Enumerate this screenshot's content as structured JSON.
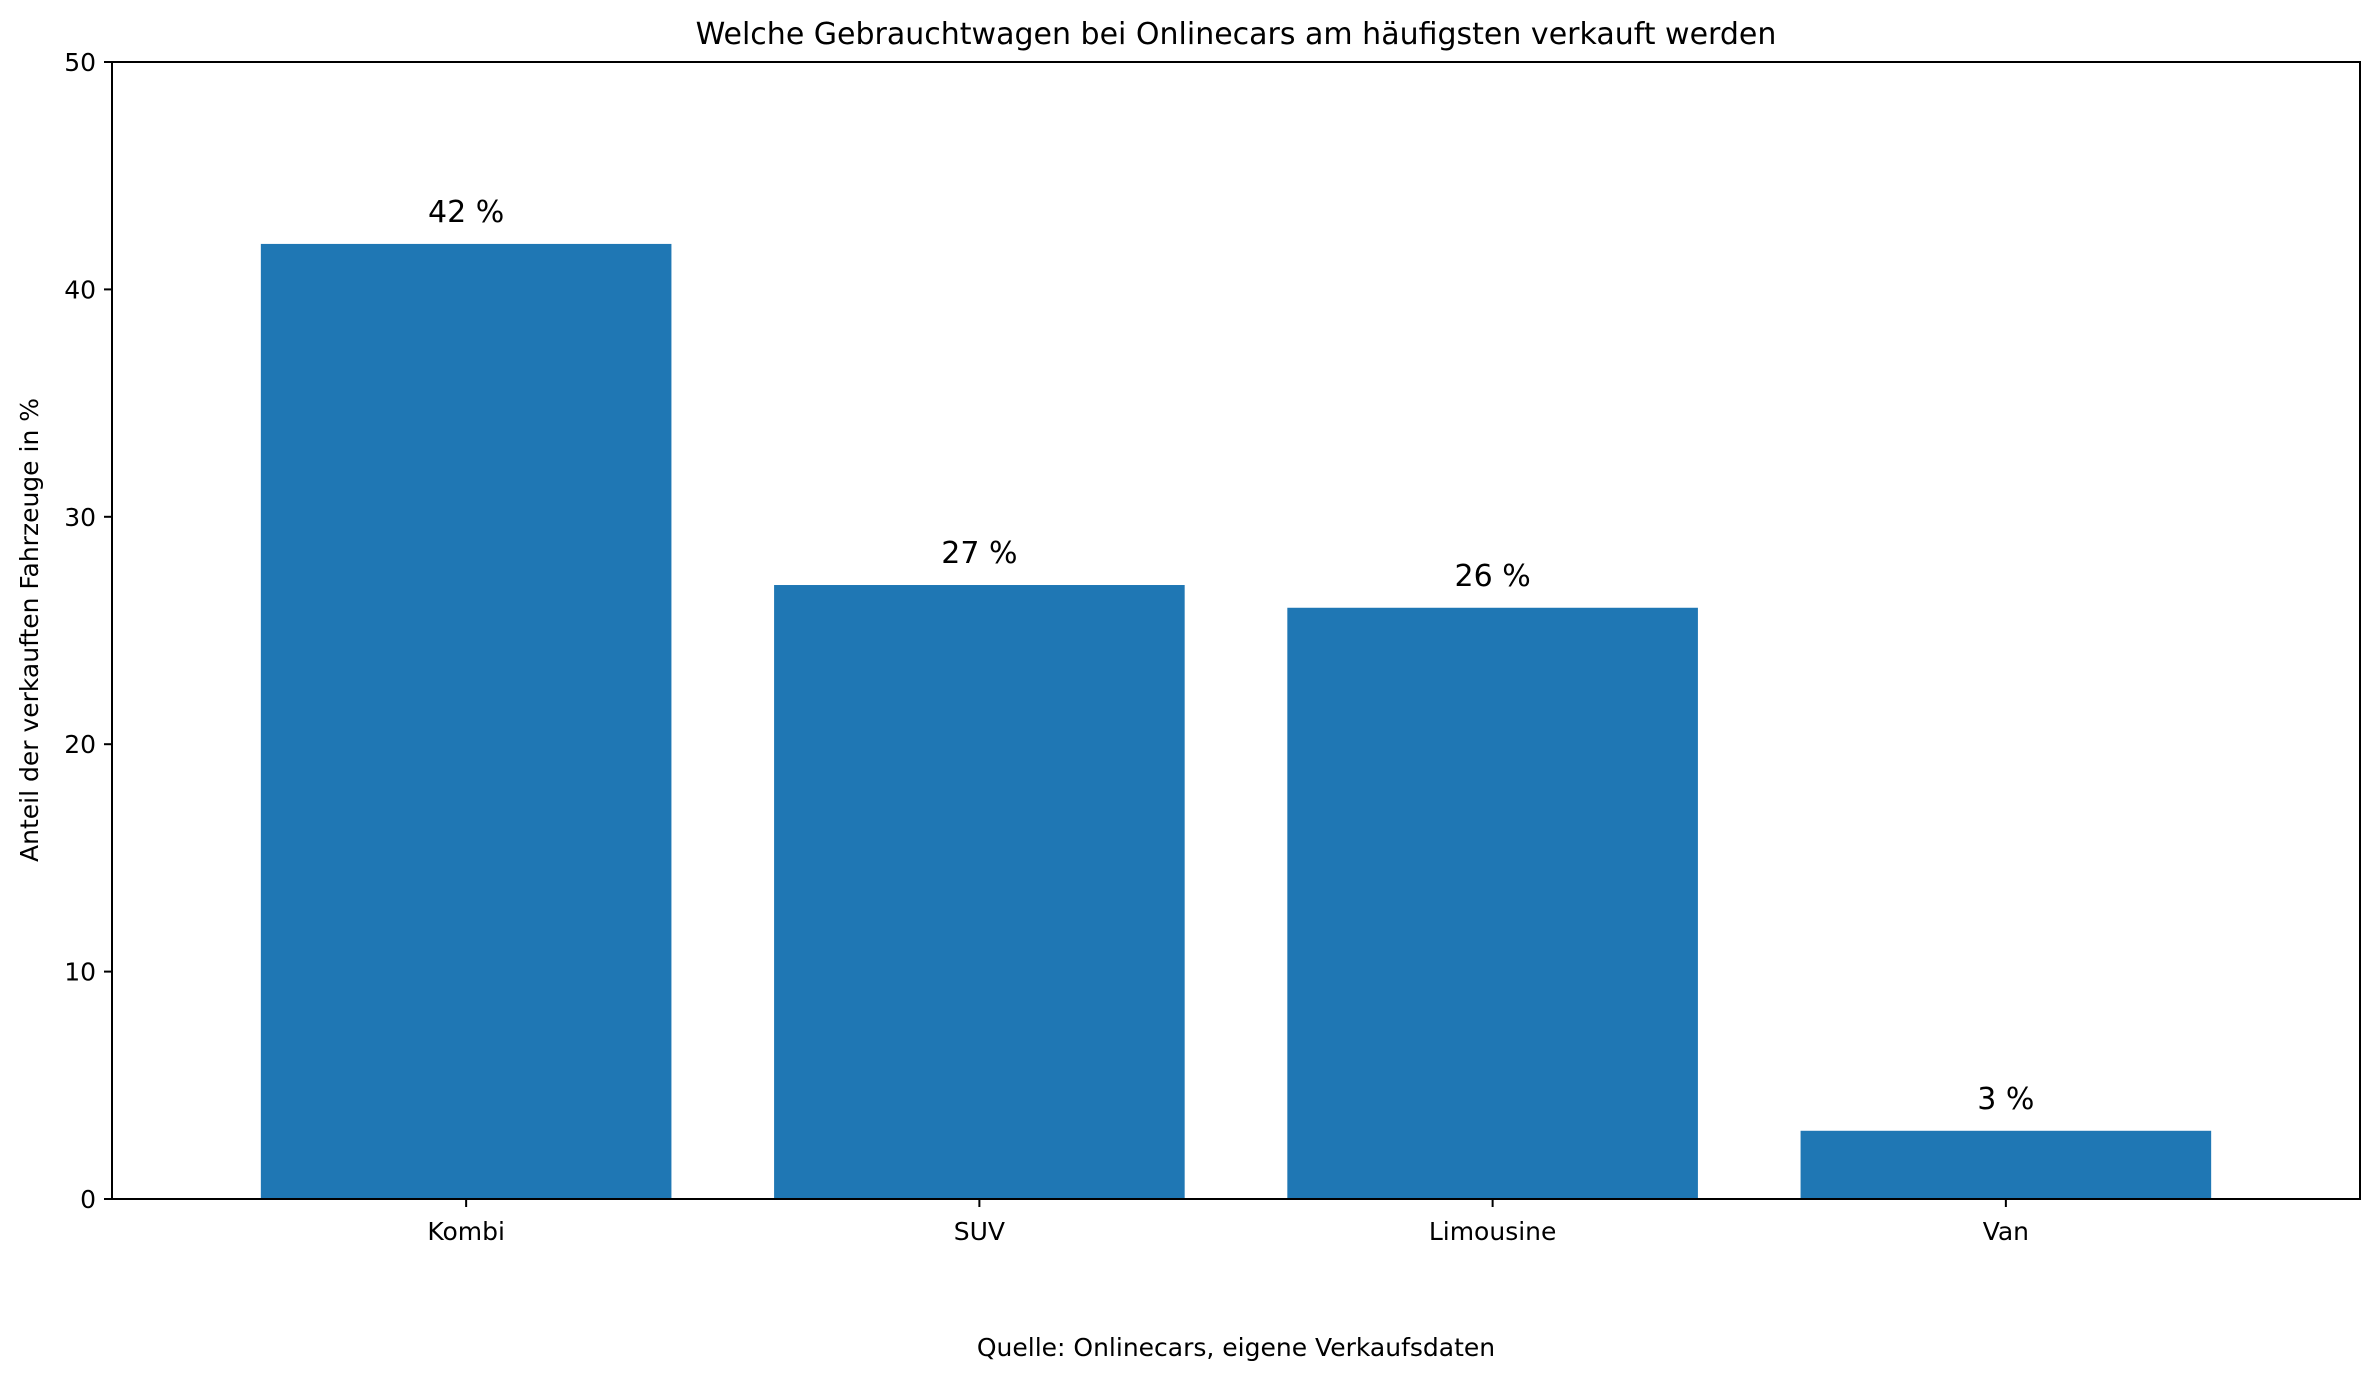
{
  "chart_data": {
    "type": "bar",
    "title": "Welche Gebrauchtwagen bei Onlinecars am häufigsten verkauft werden",
    "xlabel": "",
    "ylabel": "Anteil der verkauften Fahrzeuge in %",
    "categories": [
      "Kombi",
      "SUV",
      "Limousine",
      "Van"
    ],
    "values": [
      42,
      27,
      26,
      3
    ],
    "data_labels": [
      "42 %",
      "27 %",
      "26 %",
      "3 %"
    ],
    "ylim": [
      0,
      50
    ],
    "yticks": [
      0,
      10,
      20,
      30,
      40,
      50
    ],
    "bar_color": "#1f77b4",
    "grid": false,
    "legend": "none",
    "source": "Quelle: Onlinecars, eigene Verkaufsdaten"
  }
}
